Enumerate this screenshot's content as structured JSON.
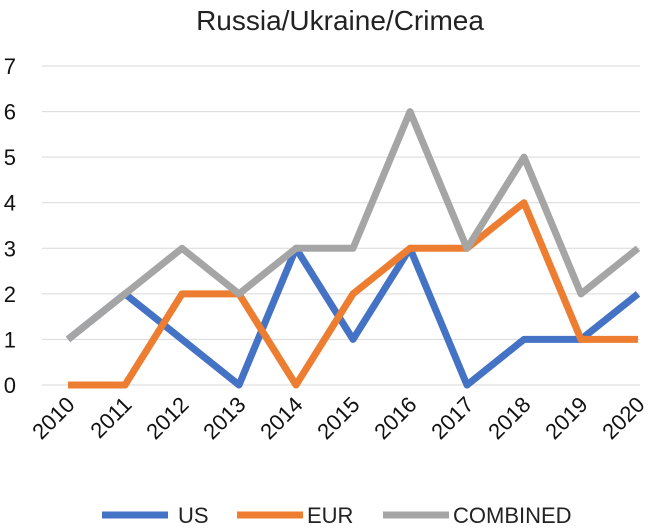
{
  "chart_data": {
    "type": "line",
    "title": "Russia/Ukraine/Crimea",
    "xlabel": "",
    "ylabel": "",
    "x": [
      "2010",
      "2011",
      "2012",
      "2013",
      "2014",
      "2015",
      "2016",
      "2017",
      "2018",
      "2019",
      "2020"
    ],
    "ylim": [
      0,
      7
    ],
    "yticks": [
      0,
      1,
      2,
      3,
      4,
      5,
      6,
      7
    ],
    "grid": true,
    "legend_position": "bottom",
    "series": [
      {
        "name": "US",
        "color": "#4472c4",
        "values": [
          1,
          2,
          1,
          0,
          3,
          1,
          3,
          0,
          1,
          1,
          2
        ]
      },
      {
        "name": "EUR",
        "color": "#ed7d31",
        "values": [
          0,
          0,
          2,
          2,
          0,
          2,
          3,
          3,
          4,
          1,
          1
        ]
      },
      {
        "name": "COMBINED",
        "color": "#a5a5a5",
        "values": [
          1,
          2,
          3,
          2,
          3,
          3,
          6,
          3,
          5,
          2,
          3
        ]
      }
    ]
  }
}
